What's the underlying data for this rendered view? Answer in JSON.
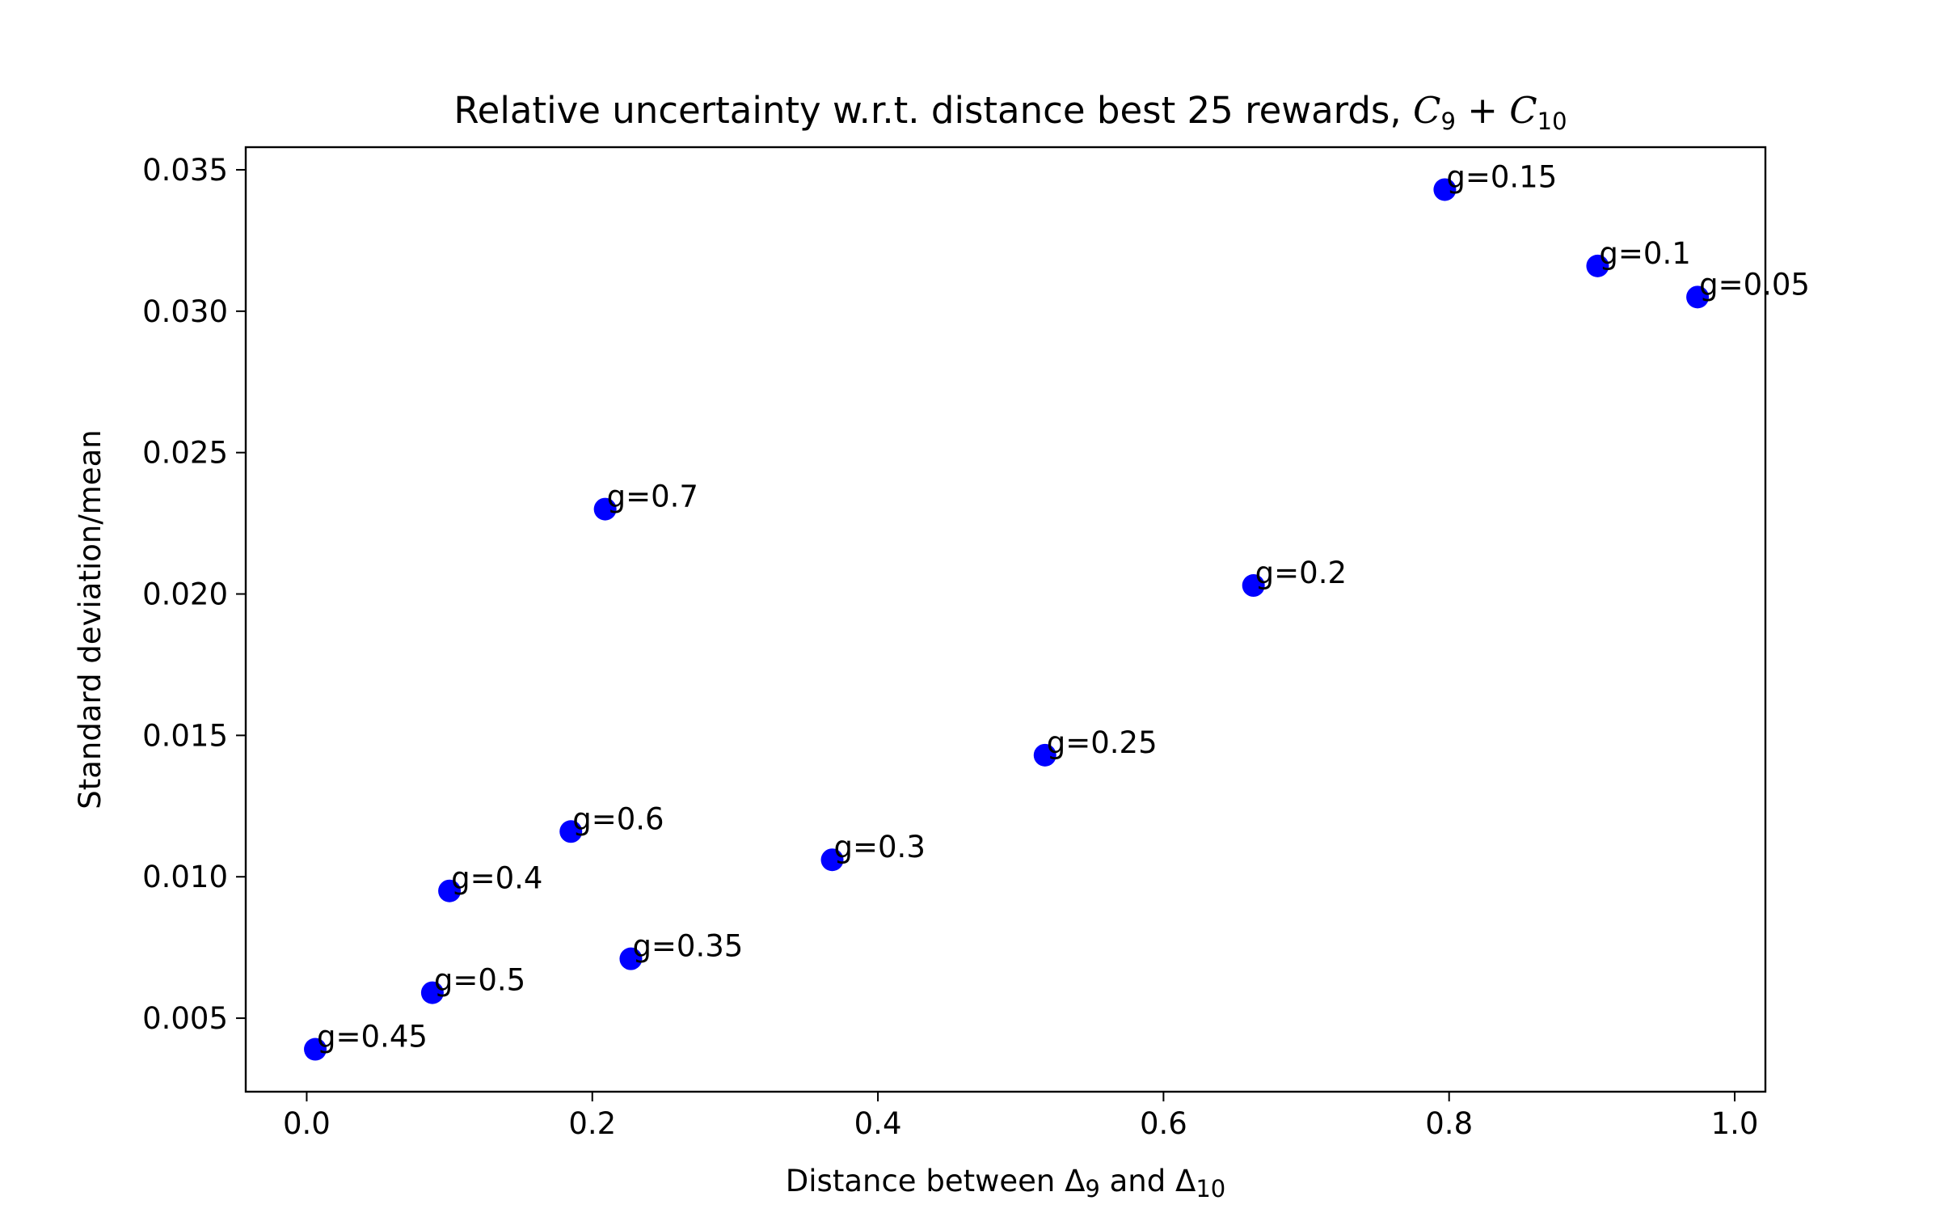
{
  "chart_data": {
    "type": "scatter",
    "title": {
      "prefix": "Relative uncertainty w.r.t. distance best 25 rewards, ",
      "c9_symbol": "C",
      "c9_sub": "9",
      "plus": " + ",
      "c10_symbol": "C",
      "c10_sub": "10"
    },
    "xlabel": {
      "prefix": "Distance between ",
      "d9_symbol": "Δ",
      "d9_sub": "9",
      "middle": " and ",
      "d10_symbol": "Δ",
      "d10_sub": "10"
    },
    "ylabel": "Standard deviation/mean",
    "xlim": [
      -0.0427,
      1.0215
    ],
    "ylim": [
      0.0024,
      0.0358
    ],
    "xticks": [
      "0.0",
      "0.2",
      "0.4",
      "0.6",
      "0.8",
      "1.0"
    ],
    "xtick_values": [
      0.0,
      0.2,
      0.4,
      0.6,
      0.8,
      1.0
    ],
    "yticks": [
      "0.005",
      "0.010",
      "0.015",
      "0.020",
      "0.025",
      "0.030",
      "0.035"
    ],
    "ytick_values": [
      0.005,
      0.01,
      0.015,
      0.02,
      0.025,
      0.03,
      0.035
    ],
    "grid": false,
    "marker_color": "#0000ff",
    "points": [
      {
        "label": "g=0.05",
        "x": 0.974,
        "y": 0.0305
      },
      {
        "label": "g=0.1",
        "x": 0.904,
        "y": 0.0316
      },
      {
        "label": "g=0.15",
        "x": 0.797,
        "y": 0.0343
      },
      {
        "label": "g=0.2",
        "x": 0.663,
        "y": 0.0203
      },
      {
        "label": "g=0.25",
        "x": 0.517,
        "y": 0.0143
      },
      {
        "label": "g=0.3",
        "x": 0.368,
        "y": 0.0106
      },
      {
        "label": "g=0.35",
        "x": 0.227,
        "y": 0.0071
      },
      {
        "label": "g=0.4",
        "x": 0.1,
        "y": 0.0095
      },
      {
        "label": "g=0.45",
        "x": 0.006,
        "y": 0.0039
      },
      {
        "label": "g=0.5",
        "x": 0.088,
        "y": 0.0059
      },
      {
        "label": "g=0.6",
        "x": 0.185,
        "y": 0.0116
      },
      {
        "label": "g=0.7",
        "x": 0.209,
        "y": 0.023
      }
    ]
  }
}
